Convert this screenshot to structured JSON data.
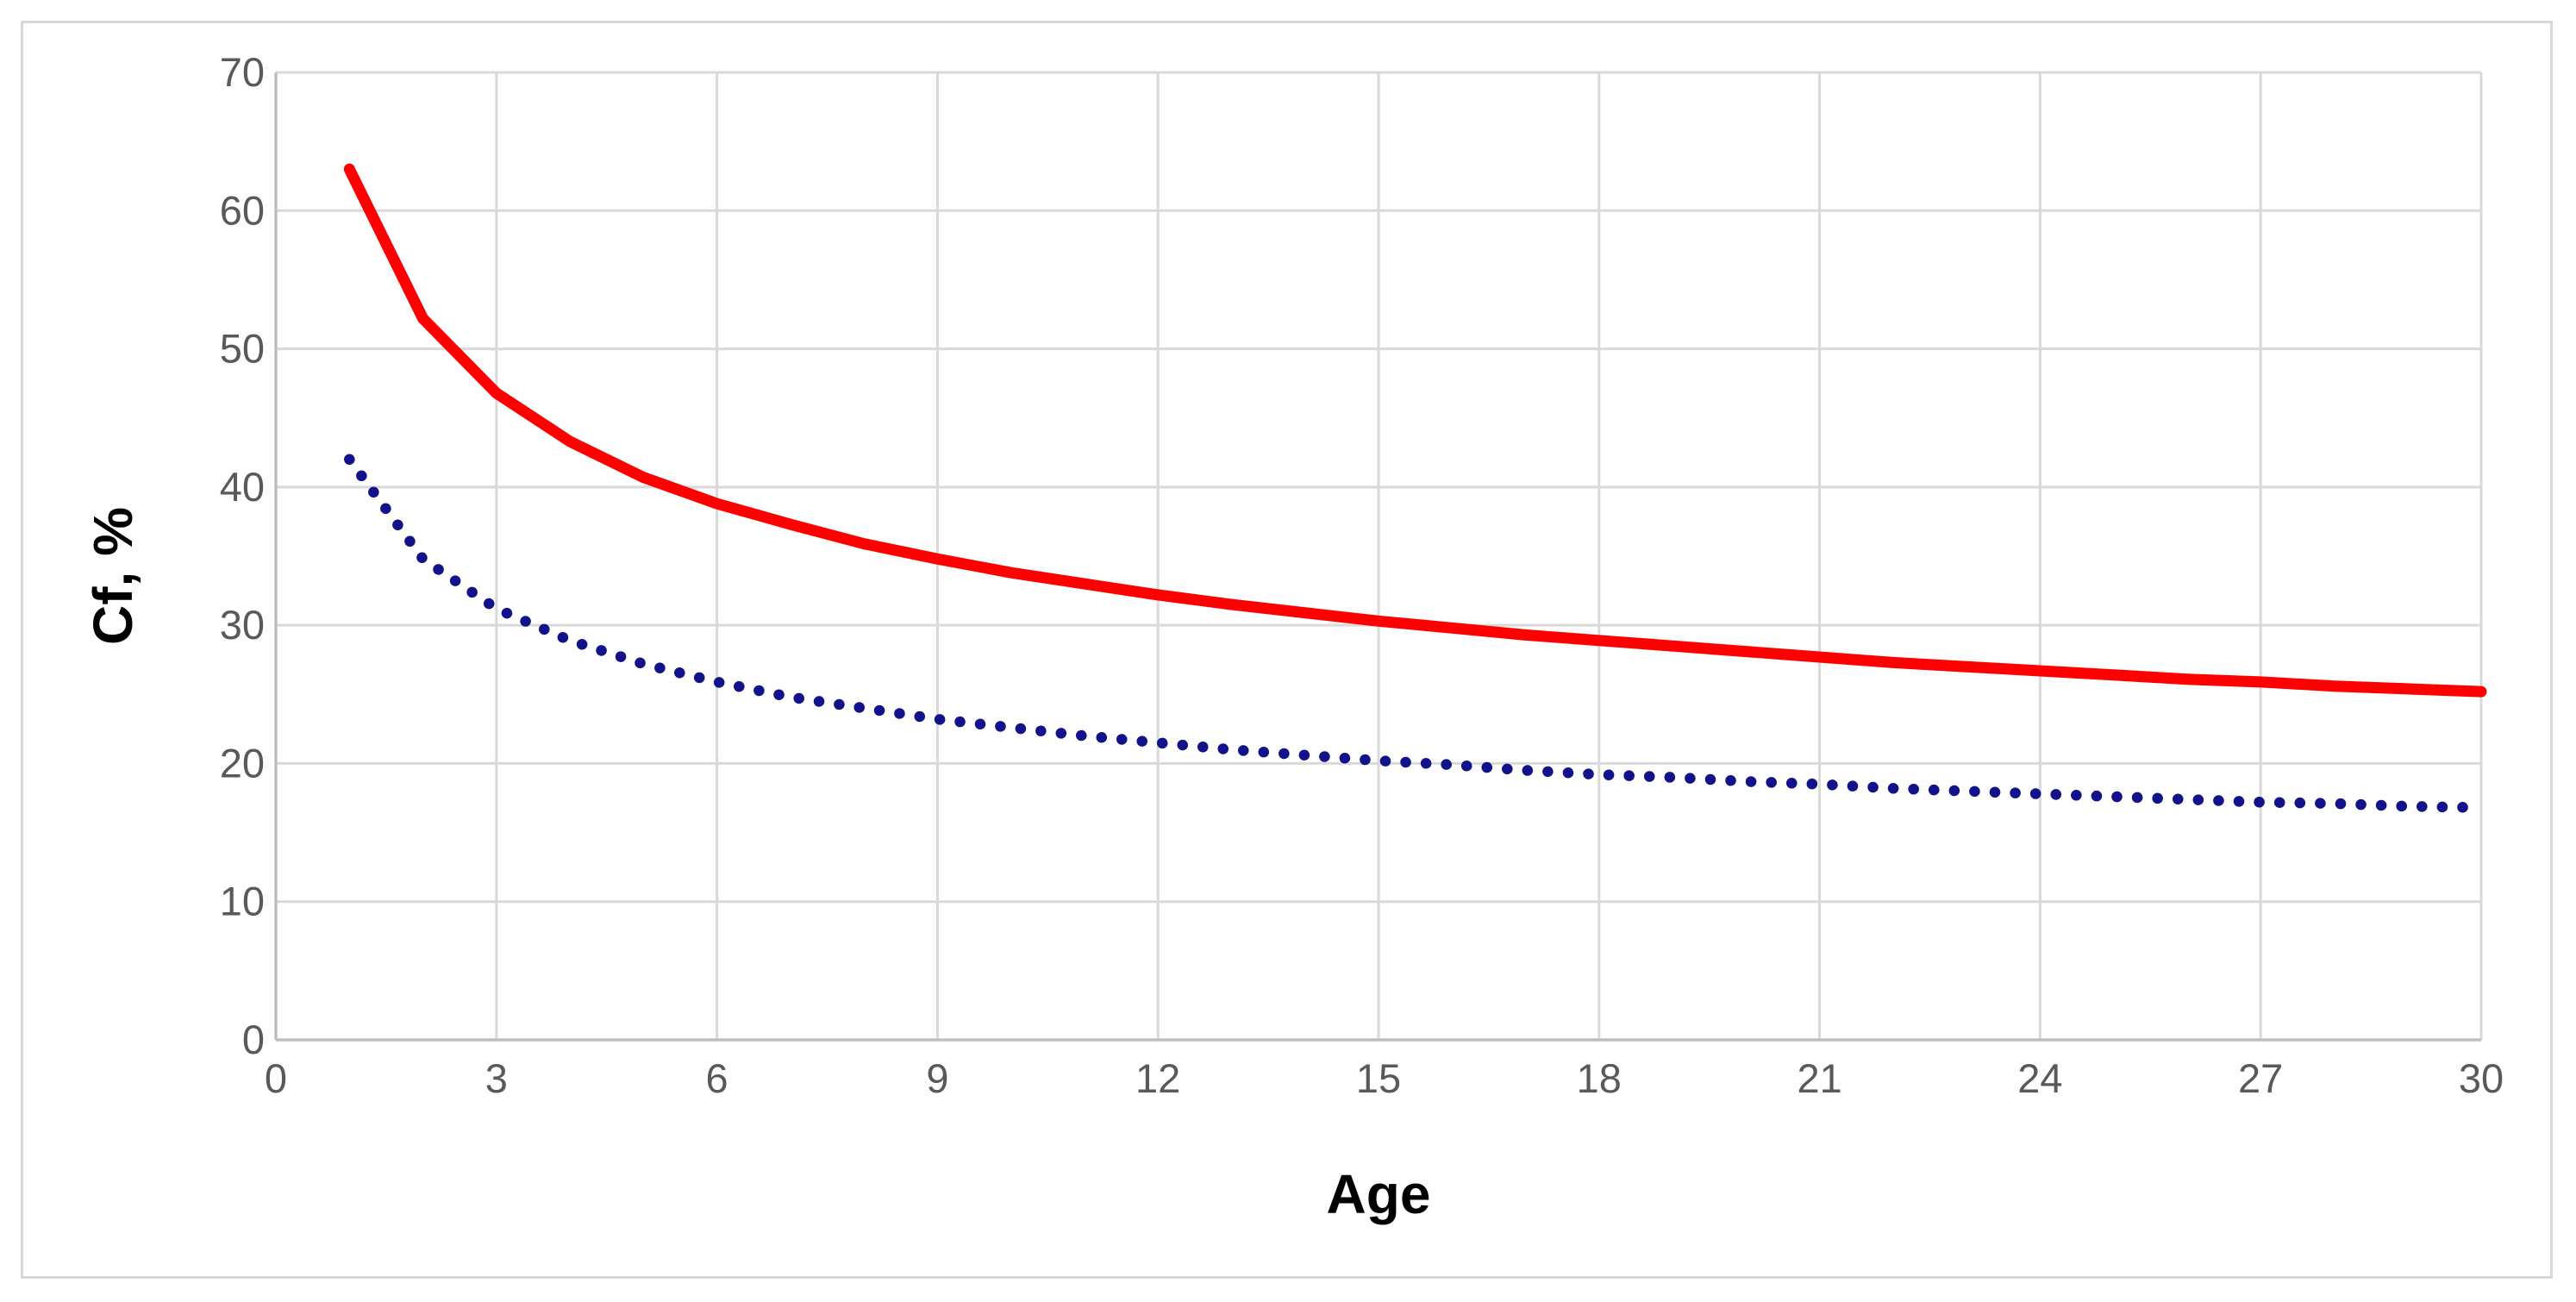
{
  "figure": {
    "background": "#FFFFFF",
    "border_color": "#D9D9D9"
  },
  "axes": {
    "tick_color": "#595959",
    "axis_line_color": "#BFBFBF",
    "gridline_color": "#D9D9D9"
  },
  "chart_data": {
    "type": "line",
    "title": "",
    "xlabel": "Age",
    "ylabel": "Cf, %",
    "xlim": [
      0,
      30
    ],
    "ylim": [
      0,
      70
    ],
    "x_ticks": [
      0,
      3,
      6,
      9,
      12,
      15,
      18,
      21,
      24,
      27,
      30
    ],
    "y_ticks": [
      0,
      10,
      20,
      30,
      40,
      50,
      60,
      70
    ],
    "grid": true,
    "legend": "none",
    "x": [
      1,
      2,
      3,
      4,
      5,
      6,
      7,
      8,
      9,
      10,
      11,
      12,
      13,
      14,
      15,
      16,
      17,
      18,
      19,
      20,
      21,
      22,
      23,
      24,
      25,
      26,
      27,
      28,
      29,
      30
    ],
    "series": [
      {
        "name": "upper-curve-red-solid",
        "color": "#FF0000",
        "line_style": "solid",
        "line_width": 13,
        "values": [
          63.0,
          52.2,
          46.8,
          43.3,
          40.7,
          38.8,
          37.3,
          35.9,
          34.8,
          33.8,
          33.0,
          32.2,
          31.5,
          30.9,
          30.3,
          29.8,
          29.3,
          28.9,
          28.5,
          28.1,
          27.7,
          27.3,
          27.0,
          26.7,
          26.4,
          26.1,
          25.9,
          25.6,
          25.4,
          25.2
        ]
      },
      {
        "name": "lower-curve-blue-dotted",
        "color": "#12128A",
        "line_style": "dotted",
        "line_width": 12.5,
        "values": [
          42.0,
          34.8,
          31.2,
          28.9,
          27.2,
          25.9,
          24.8,
          24.0,
          23.2,
          22.6,
          22.0,
          21.5,
          21.0,
          20.6,
          20.2,
          19.9,
          19.5,
          19.2,
          19.0,
          18.7,
          18.5,
          18.2,
          18.0,
          17.8,
          17.6,
          17.4,
          17.2,
          17.1,
          16.9,
          16.8
        ]
      }
    ]
  }
}
